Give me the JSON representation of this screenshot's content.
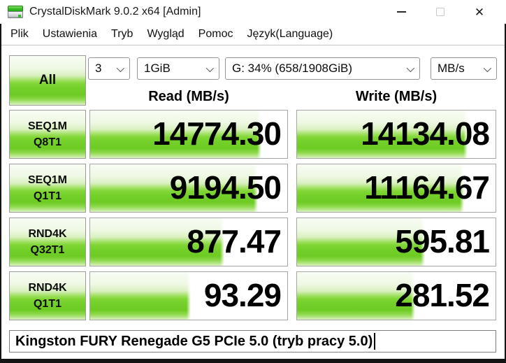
{
  "window": {
    "title": "CrystalDiskMark 9.0.2 x64 [Admin]",
    "close_glyph": "✕"
  },
  "menu": {
    "items": [
      {
        "label": "Plik"
      },
      {
        "label": "Ustawienia"
      },
      {
        "label": "Tryb"
      },
      {
        "label": "Wygląd"
      },
      {
        "label": "Pomoc"
      },
      {
        "label": "Język(Language)"
      }
    ]
  },
  "toolbar": {
    "all_label": "All",
    "combos": [
      {
        "name": "test-count",
        "value": "3"
      },
      {
        "name": "test-size",
        "value": "1GiB"
      },
      {
        "name": "target-drive",
        "value": "G: 34% (658/1908GiB)"
      },
      {
        "name": "unit",
        "value": "MB/s"
      }
    ]
  },
  "results": {
    "read_header": "Read (MB/s)",
    "write_header": "Write (MB/s)",
    "rows": [
      {
        "label1": "SEQ1M",
        "label2": "Q8T1",
        "read": "14774.30",
        "write": "14134.08",
        "read_fill": 87,
        "write_fill": 86
      },
      {
        "label1": "SEQ1M",
        "label2": "Q1T1",
        "read": "9194.50",
        "write": "11164.67",
        "read_fill": 85,
        "write_fill": 84
      },
      {
        "label1": "RND4K",
        "label2": "Q32T1",
        "read": "877.47",
        "write": "595.81",
        "read_fill": 68,
        "write_fill": 64.5
      },
      {
        "label1": "RND4K",
        "label2": "Q1T1",
        "read": "93.29",
        "write": "281.52",
        "read_fill": 51,
        "write_fill": 59.5
      }
    ]
  },
  "footer": {
    "comment": "Kingston FURY Renegade G5 PCIe 5.0 (tryb pracy 5.0)"
  },
  "colors": {
    "accent_green": "#73d029",
    "gradient_light": "#f8fdf4",
    "gradient_bottom": "#dcf3c5",
    "window_frame": "#141414"
  }
}
